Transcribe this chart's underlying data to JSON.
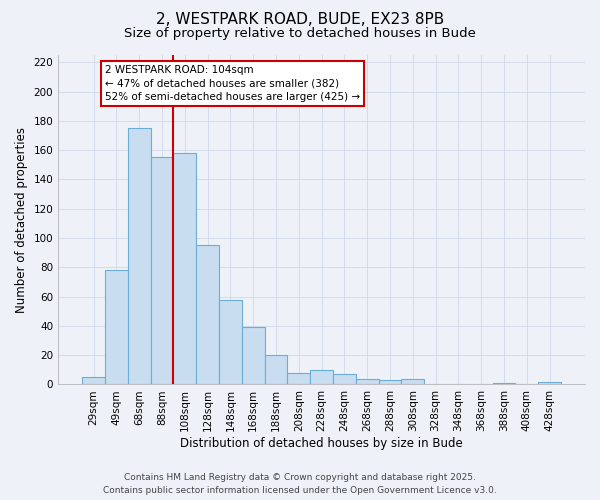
{
  "title": "2, WESTPARK ROAD, BUDE, EX23 8PB",
  "subtitle": "Size of property relative to detached houses in Bude",
  "xlabel": "Distribution of detached houses by size in Bude",
  "ylabel": "Number of detached properties",
  "bar_labels": [
    "29sqm",
    "49sqm",
    "68sqm",
    "88sqm",
    "108sqm",
    "128sqm",
    "148sqm",
    "168sqm",
    "188sqm",
    "208sqm",
    "228sqm",
    "248sqm",
    "268sqm",
    "288sqm",
    "308sqm",
    "328sqm",
    "348sqm",
    "368sqm",
    "388sqm",
    "408sqm",
    "428sqm"
  ],
  "bar_values": [
    5,
    78,
    175,
    155,
    158,
    95,
    58,
    39,
    20,
    8,
    10,
    7,
    4,
    3,
    4,
    0,
    0,
    0,
    1,
    0,
    2
  ],
  "bar_color": "#c8ddf0",
  "bar_edge_color": "#6aaed6",
  "vline_color": "#cc0000",
  "annotation_title": "2 WESTPARK ROAD: 104sqm",
  "annotation_line1": "← 47% of detached houses are smaller (382)",
  "annotation_line2": "52% of semi-detached houses are larger (425) →",
  "annotation_box_color": "#ffffff",
  "annotation_box_edge_color": "#cc0000",
  "ylim": [
    0,
    225
  ],
  "yticks": [
    0,
    20,
    40,
    60,
    80,
    100,
    120,
    140,
    160,
    180,
    200,
    220
  ],
  "footer1": "Contains HM Land Registry data © Crown copyright and database right 2025.",
  "footer2": "Contains public sector information licensed under the Open Government Licence v3.0.",
  "background_color": "#eef2f8",
  "grid_color": "#d0d8e8",
  "title_fontsize": 11,
  "subtitle_fontsize": 9.5,
  "label_fontsize": 8.5,
  "tick_fontsize": 7.5,
  "annotation_fontsize": 7.5,
  "footer_fontsize": 6.5
}
